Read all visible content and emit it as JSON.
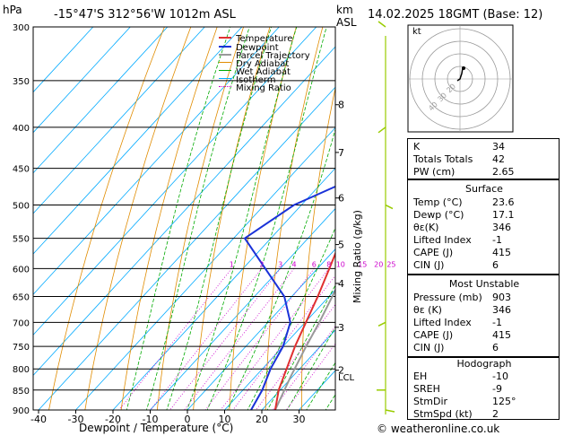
{
  "header": {
    "location": "-15°47'S  312°56'W  1012m  ASL",
    "datetime": "14.02.2025  18GMT  (Base: 12)",
    "p_unit": "hPa",
    "km_unit": "km",
    "km_unit2": "ASL"
  },
  "legend": [
    "Temperature",
    "Dewpoint",
    "Parcel Trajectory",
    "Dry Adiabat",
    "Wet Adiabat",
    "Isotherm",
    "Mixing Ratio"
  ],
  "colors": {
    "temperature": "#e03030",
    "dewpoint": "#1a32d8",
    "parcel": "#999999",
    "dry_adiabat": "#e08c00",
    "wet_adiabat": "#00aa00",
    "isotherm": "#00aaff",
    "mixing_ratio": "#cc00cc",
    "wind": "#99cc00"
  },
  "chart_data": {
    "type": "line",
    "title": "",
    "xlabel": "Dewpoint / Temperature (°C)",
    "ylabel": "Mixing Ratio (g/kg)",
    "xlim": [
      -40,
      35
    ],
    "pressure_levels": [
      300,
      350,
      400,
      450,
      500,
      550,
      600,
      650,
      700,
      750,
      800,
      850,
      900
    ],
    "temp_ticks": [
      -40,
      -30,
      -20,
      -10,
      0,
      10,
      20,
      30
    ],
    "km_ticks": [
      {
        "km": "8",
        "p": 375
      },
      {
        "km": "7",
        "p": 430
      },
      {
        "km": "6",
        "p": 490
      },
      {
        "km": "5",
        "p": 560
      },
      {
        "km": "4",
        "p": 626
      },
      {
        "km": "3",
        "p": 710
      },
      {
        "km": "2",
        "p": 803
      }
    ],
    "lcl_label": "LCL",
    "lcl_p": 818,
    "mixing_ratio_labels": [
      "1",
      "2",
      "3",
      "4",
      "6",
      "8",
      "10",
      "15",
      "20",
      "25"
    ],
    "series": [
      {
        "name": "Temperature",
        "points": [
          [
            900,
            23.6
          ],
          [
            850,
            19.6
          ],
          [
            800,
            16.5
          ],
          [
            750,
            13.2
          ],
          [
            700,
            10.2
          ],
          [
            650,
            7.0
          ],
          [
            600,
            3.2
          ],
          [
            550,
            -1.0
          ],
          [
            500,
            -5.5
          ],
          [
            450,
            -11.0
          ],
          [
            400,
            -17.0
          ],
          [
            350,
            -24.5
          ],
          [
            300,
            -33.5
          ]
        ]
      },
      {
        "name": "Dewpoint",
        "points": [
          [
            900,
            17.1
          ],
          [
            850,
            15.2
          ],
          [
            800,
            12.2
          ],
          [
            750,
            10.0
          ],
          [
            700,
            6.0
          ],
          [
            650,
            -2.0
          ],
          [
            600,
            -14.0
          ],
          [
            550,
            -27.0
          ],
          [
            500,
            -22.0
          ],
          [
            450,
            -9.0
          ],
          [
            400,
            -18.0
          ],
          [
            350,
            -25.0
          ],
          [
            300,
            -40.0
          ]
        ]
      },
      {
        "name": "Parcel Trajectory",
        "points": [
          [
            900,
            23.6
          ],
          [
            818,
            19.5
          ],
          [
            750,
            16.2
          ],
          [
            700,
            13.8
          ],
          [
            650,
            10.9
          ],
          [
            600,
            7.6
          ],
          [
            550,
            3.6
          ],
          [
            500,
            -0.8
          ],
          [
            450,
            -6.2
          ],
          [
            400,
            -12.8
          ],
          [
            350,
            -21.0
          ],
          [
            300,
            -31.5
          ]
        ]
      }
    ]
  },
  "hodograph": {
    "label": "kt",
    "ring_labels": [
      "40",
      "30",
      "20"
    ]
  },
  "indices": [
    {
      "k": "K",
      "v": "34"
    },
    {
      "k": "Totals Totals",
      "v": "42"
    },
    {
      "k": "PW (cm)",
      "v": "2.65"
    }
  ],
  "surface": {
    "title": "Surface",
    "rows": [
      {
        "k": "Temp (°C)",
        "v": "23.6"
      },
      {
        "k": "Dewp (°C)",
        "v": "17.1"
      },
      {
        "k": "θε(K)",
        "v": "346"
      },
      {
        "k": "Lifted Index",
        "v": "-1"
      },
      {
        "k": "CAPE (J)",
        "v": "415"
      },
      {
        "k": "CIN (J)",
        "v": "6"
      }
    ]
  },
  "most_unstable": {
    "title": "Most Unstable",
    "rows": [
      {
        "k": "Pressure (mb)",
        "v": "903"
      },
      {
        "k": "θε (K)",
        "v": "346"
      },
      {
        "k": "Lifted Index",
        "v": "-1"
      },
      {
        "k": "CAPE (J)",
        "v": "415"
      },
      {
        "k": "CIN (J)",
        "v": "6"
      }
    ]
  },
  "hodograph_table": {
    "title": "Hodograph",
    "rows": [
      {
        "k": "EH",
        "v": "-10"
      },
      {
        "k": "SREH",
        "v": "-9"
      },
      {
        "k": "StmDir",
        "v": "125°"
      },
      {
        "k": "StmSpd (kt)",
        "v": "2"
      }
    ]
  },
  "footer": "© weatheronline.co.uk"
}
